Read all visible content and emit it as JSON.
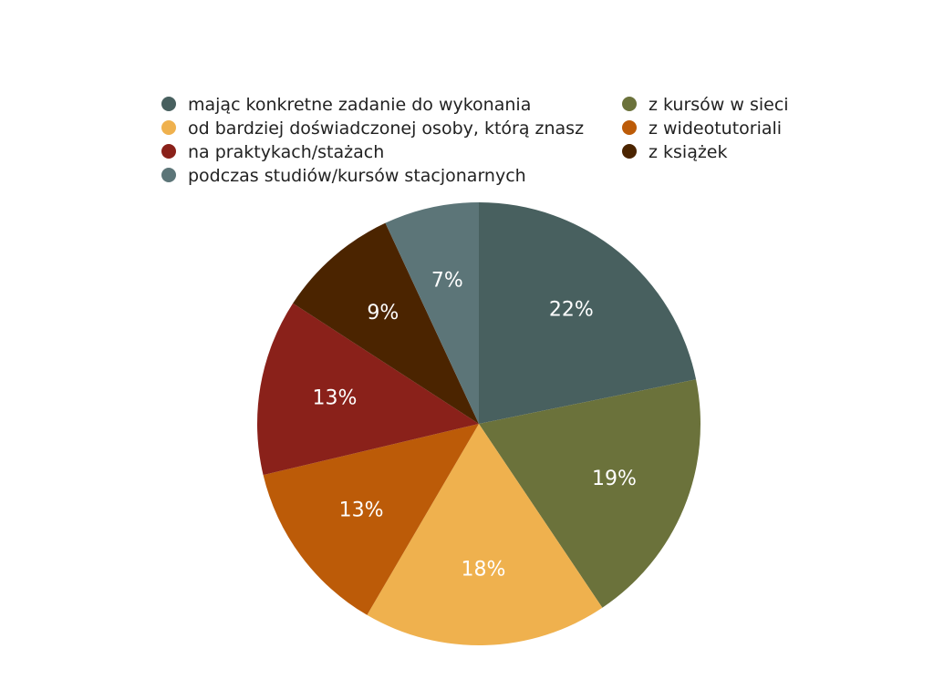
{
  "chart_data": {
    "type": "pie",
    "title": "",
    "legend_placement": "top",
    "slices": [
      {
        "name": "mając konkretne zadanie do wykonania",
        "value": 22,
        "label": "22%",
        "color": "#48605f"
      },
      {
        "name": "z kursów w sieci",
        "value": 19,
        "label": "19%",
        "color": "#6b723b"
      },
      {
        "name": "od bardziej doświadczonej osoby, którą znasz",
        "value": 18,
        "label": "18%",
        "color": "#efb14e"
      },
      {
        "name": "z wideotutoriali",
        "value": 13,
        "label": "13%",
        "color": "#bc5b08"
      },
      {
        "name": "na praktykach/stażach",
        "value": 13,
        "label": "13%",
        "color": "#8a211a"
      },
      {
        "name": "z książek",
        "value": 9,
        "label": "9%",
        "color": "#4b2400"
      },
      {
        "name": "podczas studiów/kursów stacjonarnych",
        "value": 7,
        "label": "7%",
        "color": "#5c7578"
      }
    ],
    "legend_order": [
      "mając konkretne zadanie do wykonania",
      "od bardziej doświadczonej osoby, którą znasz",
      "na praktykach/stażach",
      "podczas studiów/kursów stacjonarnych",
      "z kursów w sieci",
      "z wideotutoriali",
      "z książek"
    ]
  }
}
